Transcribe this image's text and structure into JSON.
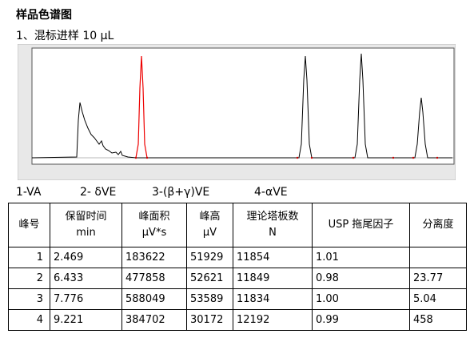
{
  "heading": "样品色谱图",
  "subheading": "1、混标进样 10 μL",
  "peak_labels": [
    "1-VA",
    "2- δVE",
    "3-(β+γ)VE",
    "4-αVE"
  ],
  "table": {
    "header": [
      [
        "峰号"
      ],
      [
        "保留时间",
        "min"
      ],
      [
        "峰面积",
        "μV*s"
      ],
      [
        "峰高",
        "μV"
      ],
      [
        "理论塔板数",
        "N"
      ],
      [
        "USP 拖尾因子"
      ],
      [
        "分离度"
      ]
    ],
    "rows": [
      [
        "1",
        "2.469",
        "183622",
        "51929",
        "11854",
        "1.01",
        null
      ],
      [
        "2",
        "6.433",
        "477858",
        "52621",
        "11849",
        "0.98",
        "23.77"
      ],
      [
        "3",
        "7.776",
        "588049",
        "53589",
        "11834",
        "1.00",
        "5.04"
      ],
      [
        "4",
        "9.221",
        "384702",
        "30172",
        "12192",
        "0.99",
        "458"
      ]
    ]
  }
}
